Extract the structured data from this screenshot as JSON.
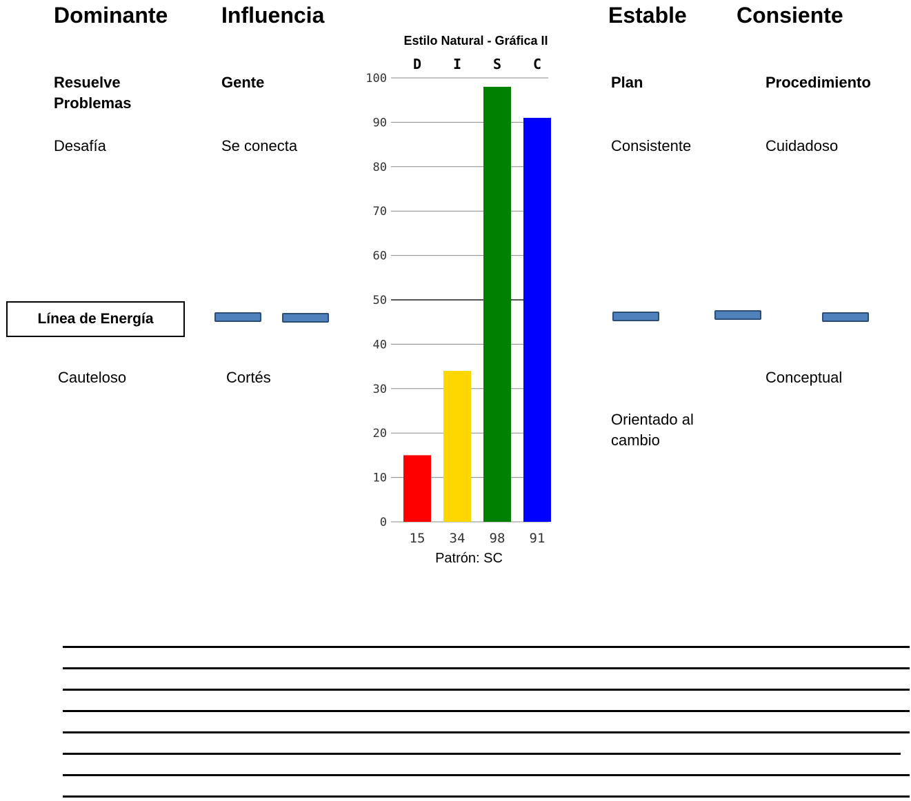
{
  "columns": [
    {
      "heading": "Dominante",
      "subheading": "Resuelve Problemas",
      "high_trait": "Desafía",
      "low_trait": "Cauteloso"
    },
    {
      "heading": "Influencia",
      "subheading": "Gente",
      "high_trait": "Se conecta",
      "low_trait": "Cortés"
    },
    {
      "heading": "Estable",
      "subheading": "Plan",
      "high_trait": "Consistente",
      "low_trait": "Orientado al cambio"
    },
    {
      "heading": "Consiente",
      "subheading": "Procedimiento",
      "high_trait": "Cuidadoso",
      "low_trait": "Conceptual"
    }
  ],
  "energy_line_label": "Línea de Energía",
  "chart_data": {
    "type": "bar",
    "title": "Estilo Natural - Gráfica II",
    "categories": [
      "D",
      "I",
      "S",
      "C"
    ],
    "values": [
      15,
      34,
      98,
      91
    ],
    "value_labels": [
      "15",
      "34",
      "98",
      "91"
    ],
    "colors": [
      "#ff0000",
      "#ffd700",
      "#008000",
      "#0000ff"
    ],
    "ylim": [
      0,
      100
    ],
    "yticks": [
      0,
      10,
      20,
      30,
      40,
      50,
      60,
      70,
      80,
      90,
      100
    ],
    "footer": "Patrón: SC",
    "grid": true,
    "energy_line_value": 50
  }
}
